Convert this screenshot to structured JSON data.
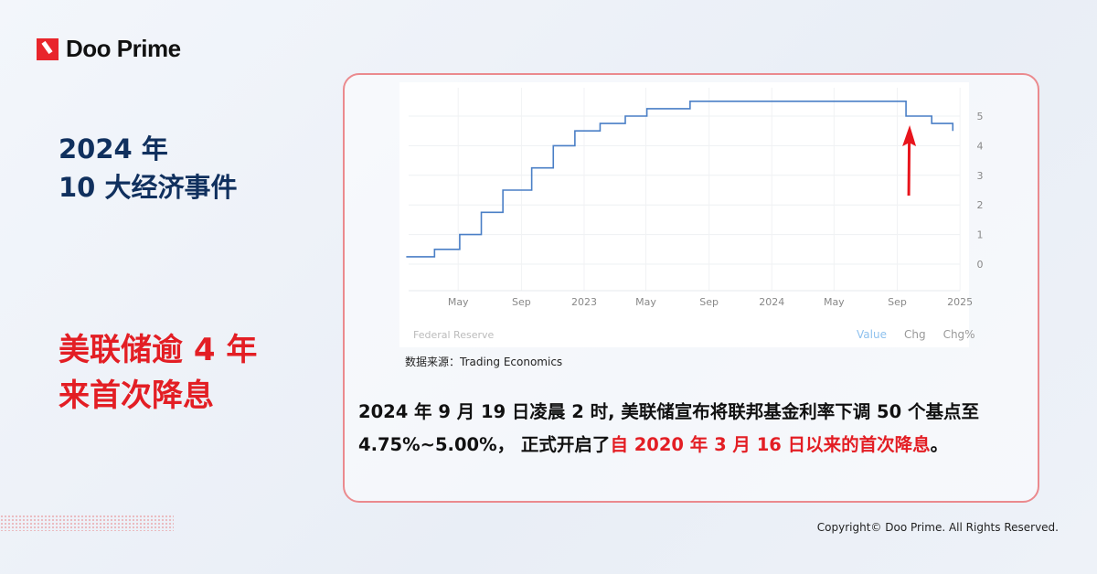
{
  "brand": {
    "name": "Doo Prime",
    "accent": "#e31e24"
  },
  "headline": {
    "line1": "2024 年",
    "line2": "10 大经济事件"
  },
  "topic": {
    "line1": "美联储逾 4 年",
    "line2": "来首次降息"
  },
  "chart_data": {
    "type": "line",
    "step": true,
    "x_ticks": [
      "May",
      "Sep",
      "2023",
      "May",
      "Sep",
      "2024",
      "May",
      "Sep",
      "2025"
    ],
    "y_ticks": [
      "0",
      "1",
      "2",
      "3",
      "4",
      "5"
    ],
    "ylim": [
      -1,
      5.7
    ],
    "grid": true,
    "line_color": "#4a7fc6",
    "points": [
      [
        "2022-01-20",
        0.25
      ],
      [
        "2022-03-16",
        0.5
      ],
      [
        "2022-05-04",
        1.0
      ],
      [
        "2022-06-15",
        1.75
      ],
      [
        "2022-07-27",
        2.5
      ],
      [
        "2022-09-21",
        3.25
      ],
      [
        "2022-11-02",
        4.0
      ],
      [
        "2022-12-14",
        4.5
      ],
      [
        "2023-02-01",
        4.75
      ],
      [
        "2023-03-22",
        5.0
      ],
      [
        "2023-05-03",
        5.25
      ],
      [
        "2023-07-26",
        5.5
      ],
      [
        "2024-09-18",
        5.0
      ],
      [
        "2024-11-07",
        4.75
      ],
      [
        "2024-12-18",
        4.5
      ]
    ],
    "annotation": {
      "type": "arrow",
      "color": "#e8141c",
      "points_to": "2024-09-18"
    },
    "source_label": "Federal Reserve",
    "tabs": [
      {
        "label": "Value",
        "active": true
      },
      {
        "label": "Chg",
        "active": false
      },
      {
        "label": "Chg%",
        "active": false
      }
    ]
  },
  "source": "数据来源：Trading Economics",
  "body": {
    "part1": "2024 年 9 月 19 日凌晨 2 时, 美联储宣布将联邦基金利率下调 50 个基点至 4.75%~5.00%， 正式开启了",
    "part2": "自 2020 年 3 月 16 日以来的首次降息",
    "part3": "。"
  },
  "copyright": "Copyright© Doo Prime. All Rights Reserved."
}
